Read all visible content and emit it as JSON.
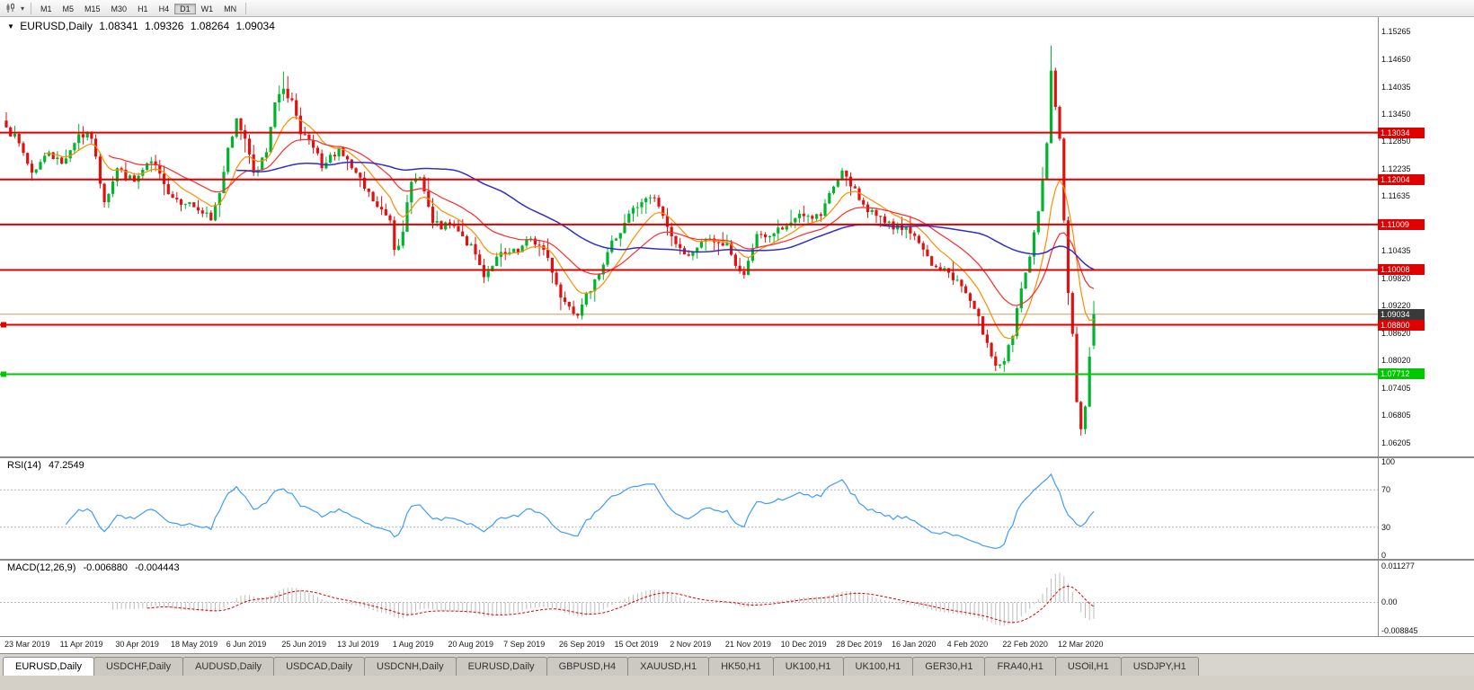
{
  "toolbar": {
    "timeframes": [
      "M1",
      "M5",
      "M15",
      "M30",
      "H1",
      "H4",
      "D1",
      "W1",
      "MN"
    ],
    "active_timeframe": "D1"
  },
  "chart": {
    "symbol": "EURUSD,Daily",
    "ohlc": {
      "open": "1.08341",
      "high": "1.09326",
      "low": "1.08264",
      "close": "1.09034"
    },
    "dropdown_icon": "▼"
  },
  "price_axis": {
    "ticks": [
      "1.15265",
      "1.14650",
      "1.14035",
      "1.13450",
      "1.12850",
      "1.12235",
      "1.11635",
      "1.10435",
      "1.09820",
      "1.09220",
      "1.08620",
      "1.08020",
      "1.07405",
      "1.06805",
      "1.06205"
    ]
  },
  "levels": {
    "resistance": [
      {
        "label": "1.13034",
        "value": 1.13034,
        "handle": false
      },
      {
        "label": "1.12004",
        "value": 1.12004,
        "handle": false
      },
      {
        "label": "1.11009",
        "value": 1.11009,
        "handle": false
      },
      {
        "label": "1.10008",
        "value": 1.10008,
        "handle": false
      },
      {
        "label": "1.08800",
        "value": 1.088,
        "handle": true
      }
    ],
    "support": {
      "label": "1.07712",
      "value": 1.07712,
      "handle": true
    },
    "bid": {
      "label": "1.09034",
      "value": 1.09034
    }
  },
  "indicators": {
    "rsi": {
      "label": "RSI(14)",
      "value": "47.2549",
      "ticks": [
        {
          "label": "100",
          "value": 100
        },
        {
          "label": "70",
          "value": 70
        },
        {
          "label": "30",
          "value": 30
        },
        {
          "label": "0",
          "value": 0
        }
      ],
      "dotted_levels": [
        70,
        30
      ]
    },
    "macd": {
      "label": "MACD(12,26,9)",
      "value_main": "-0.006880",
      "value_signal": "-0.004443",
      "ticks": [
        {
          "label": "0.011277",
          "value": 0.011277
        },
        {
          "label": "0.00",
          "value": 0
        },
        {
          "label": "-0.008845",
          "value": -0.008845
        }
      ],
      "range": [
        -0.0094,
        0.0119
      ]
    }
  },
  "date_axis": {
    "labels": [
      "23 Mar 2019",
      "11 Apr 2019",
      "30 Apr 2019",
      "18 May 2019",
      "6 Jun 2019",
      "25 Jun 2019",
      "13 Jul 2019",
      "1 Aug 2019",
      "20 Aug 2019",
      "7 Sep 2019",
      "26 Sep 2019",
      "15 Oct 2019",
      "2 Nov 2019",
      "21 Nov 2019",
      "10 Dec 2019",
      "28 Dec 2019",
      "16 Jan 2020",
      "4 Feb 2020",
      "22 Feb 2020",
      "12 Mar 2020"
    ],
    "candles_per_label": 13
  },
  "tabs": [
    "EURUSD,Daily",
    "USDCHF,Daily",
    "AUDUSD,Daily",
    "USDCAD,Daily",
    "USDCNH,Daily",
    "EURUSD,Daily",
    "GBPUSD,H4",
    "XAUUSD,H1",
    "HK50,H1",
    "UK100,H1",
    "UK100,H1",
    "GER30,H1",
    "FRA40,H1",
    "USOil,H1",
    "USDJPY,H1"
  ],
  "active_tab_index": 0,
  "colors": {
    "bull": "#00b42d",
    "bear": "#df1212",
    "ma_fast": "#ff8c00",
    "ma_medium": "#ff2a2a",
    "ma_slow": "#2f2fc8",
    "resistance": "#e00000",
    "support": "#00c800",
    "rsi_line": "#3e9bff",
    "macd_hist": "#bdbdbd",
    "macd_signal": "#e00000",
    "bid_line": "#c8a060",
    "bid_tag_bg": "#3a3a3a"
  },
  "chart_data": {
    "type": "candlestick",
    "symbol": "EURUSD",
    "timeframe": "Daily",
    "price_range": [
      1.059,
      1.156
    ],
    "num_candles": 256,
    "seed": 7,
    "noise_amp": 0.0011,
    "wick_amp": 0.0032,
    "anchors": [
      [
        0,
        1.1315
      ],
      [
        3,
        1.128
      ],
      [
        6,
        1.1215
      ],
      [
        10,
        1.126
      ],
      [
        13,
        1.1235
      ],
      [
        17,
        1.13
      ],
      [
        20,
        1.129
      ],
      [
        23,
        1.115
      ],
      [
        26,
        1.1225
      ],
      [
        30,
        1.1195
      ],
      [
        34,
        1.124
      ],
      [
        37,
        1.119
      ],
      [
        39,
        1.116
      ],
      [
        43,
        1.115
      ],
      [
        46,
        1.1125
      ],
      [
        48,
        1.111
      ],
      [
        50,
        1.117
      ],
      [
        52,
        1.127
      ],
      [
        54,
        1.1335
      ],
      [
        56,
        1.129
      ],
      [
        58,
        1.1215
      ],
      [
        61,
        1.126
      ],
      [
        63,
        1.137
      ],
      [
        65,
        1.14
      ],
      [
        67,
        1.1375
      ],
      [
        69,
        1.13
      ],
      [
        72,
        1.127
      ],
      [
        74,
        1.1225
      ],
      [
        78,
        1.127
      ],
      [
        81,
        1.1225
      ],
      [
        84,
        1.118
      ],
      [
        87,
        1.114
      ],
      [
        90,
        1.111
      ],
      [
        91,
        1.1045
      ],
      [
        93,
        1.1085
      ],
      [
        95,
        1.1195
      ],
      [
        97,
        1.1205
      ],
      [
        100,
        1.1105
      ],
      [
        102,
        1.109
      ],
      [
        104,
        1.11
      ],
      [
        107,
        1.1075
      ],
      [
        110,
        1.1035
      ],
      [
        112,
        1.0985
      ],
      [
        115,
        1.103
      ],
      [
        117,
        1.1035
      ],
      [
        120,
        1.104
      ],
      [
        123,
        1.107
      ],
      [
        126,
        1.1045
      ],
      [
        128,
        1.0995
      ],
      [
        130,
        1.094
      ],
      [
        132,
        1.092
      ],
      [
        134,
        1.09
      ],
      [
        136,
        1.095
      ],
      [
        138,
        1.098
      ],
      [
        141,
        1.104
      ],
      [
        143,
        1.107
      ],
      [
        146,
        1.1125
      ],
      [
        149,
        1.115
      ],
      [
        152,
        1.116
      ],
      [
        154,
        1.112
      ],
      [
        156,
        1.1075
      ],
      [
        159,
        1.1035
      ],
      [
        162,
        1.105
      ],
      [
        165,
        1.107
      ],
      [
        167,
        1.106
      ],
      [
        169,
        1.106
      ],
      [
        171,
        1.101
      ],
      [
        173,
        1.099
      ],
      [
        176,
        1.108
      ],
      [
        179,
        1.1075
      ],
      [
        182,
        1.109
      ],
      [
        185,
        1.1115
      ],
      [
        188,
        1.112
      ],
      [
        191,
        1.112
      ],
      [
        193,
        1.117
      ],
      [
        196,
        1.122
      ],
      [
        198,
        1.1185
      ],
      [
        201,
        1.1145
      ],
      [
        204,
        1.112
      ],
      [
        206,
        1.1105
      ],
      [
        208,
        1.109
      ],
      [
        211,
        1.1095
      ],
      [
        214,
        1.106
      ],
      [
        217,
        1.101
      ],
      [
        219,
        1.1
      ],
      [
        221,
        1.0995
      ],
      [
        224,
        1.0965
      ],
      [
        227,
        1.0915
      ],
      [
        230,
        1.084
      ],
      [
        232,
        1.079
      ],
      [
        234,
        1.08
      ],
      [
        236,
        1.0855
      ],
      [
        238,
        1.096
      ],
      [
        240,
        1.103
      ],
      [
        242,
        1.113
      ],
      [
        244,
        1.128
      ],
      [
        245,
        1.144
      ],
      [
        246,
        1.136
      ],
      [
        247,
        1.129
      ],
      [
        248,
        1.111
      ],
      [
        249,
        1.095
      ],
      [
        250,
        1.086
      ],
      [
        251,
        1.071
      ],
      [
        252,
        1.065
      ],
      [
        253,
        1.07
      ],
      [
        254,
        1.081
      ],
      [
        255,
        1.09034
      ]
    ],
    "candle_overrides": {
      "65": {
        "h": 1.1438
      },
      "232": {
        "l": 1.0778
      },
      "245": {
        "h": 1.1495
      },
      "252": {
        "l": 1.0636
      },
      "255": {
        "o": 1.08341,
        "h": 1.09326,
        "l": 1.08264,
        "c": 1.09034
      }
    },
    "overlays": [
      {
        "name": "ema-fast",
        "period": 10
      },
      {
        "name": "ema-medium",
        "period": 25
      },
      {
        "name": "sma-slow",
        "period": 55
      }
    ],
    "rsi_period": 14,
    "macd_params": [
      12,
      26,
      9
    ],
    "sr_levels": [
      1.13034,
      1.12004,
      1.11009,
      1.10008,
      1.088
    ],
    "support_level": 1.07712,
    "bid_price": 1.09034
  }
}
